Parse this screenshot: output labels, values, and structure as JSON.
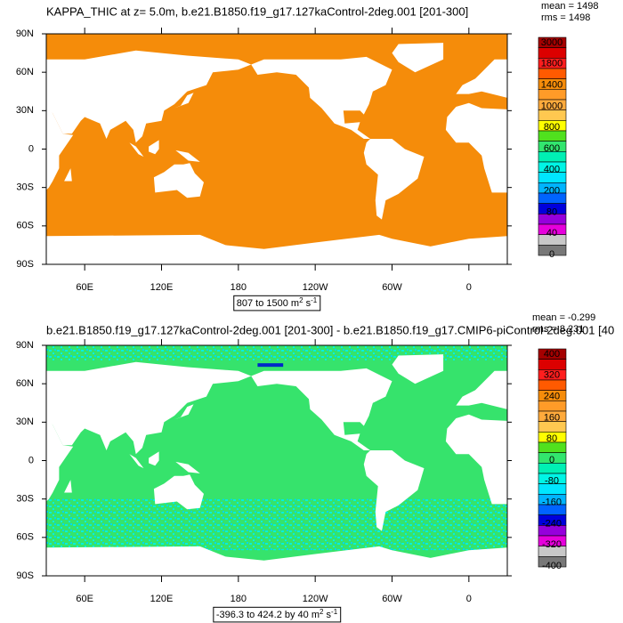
{
  "panels": [
    {
      "title": "KAPPA_THIC at z=   5.0m, b.e21.B1850.f19_g17.127kaControl-2deg.001 [201-300]",
      "mean": "mean = 1498",
      "rms": "rms = 1498",
      "range": [
        "807 to 1500 m",
        "2",
        " s",
        "-1"
      ],
      "colorbar_labels": [
        3000,
        1800,
        1400,
        1000,
        800,
        600,
        400,
        200,
        80,
        40,
        0
      ]
    },
    {
      "title": "b.e21.B1850.f19_g17.127kaControl-2deg.001 [201-300] - b.e21.B1850.f19_g17.CMIP6-piControl-2deg.001 [40",
      "mean": "mean = -0.299",
      "rms": "rms = 8.231",
      "range": [
        "-396.3 to 424.2 by 40 m",
        "2",
        " s",
        "-1"
      ],
      "colorbar_labels": [
        400,
        320,
        240,
        160,
        80,
        0,
        -80,
        -160,
        -240,
        -320,
        -400
      ]
    }
  ],
  "lat_labels": [
    "90N",
    "60N",
    "30N",
    "0",
    "30S",
    "60S",
    "90S"
  ],
  "lon_labels": [
    "60E",
    "120E",
    "180",
    "120W",
    "60W",
    "0"
  ],
  "colorbar_colors": [
    "#a50000",
    "#dc0000",
    "#ff1e1e",
    "#ff5a00",
    "#f58c0a",
    "#ff9b28",
    "#ffaa3c",
    "#ffc850",
    "#ffff00",
    "#50e11e",
    "#32e66e",
    "#00f0b4",
    "#00f5e6",
    "#00e6ff",
    "#00b4ff",
    "#0064ff",
    "#0000dc",
    "#9600dc",
    "#e600dc",
    "#c8c8c8",
    "#787878"
  ]
}
